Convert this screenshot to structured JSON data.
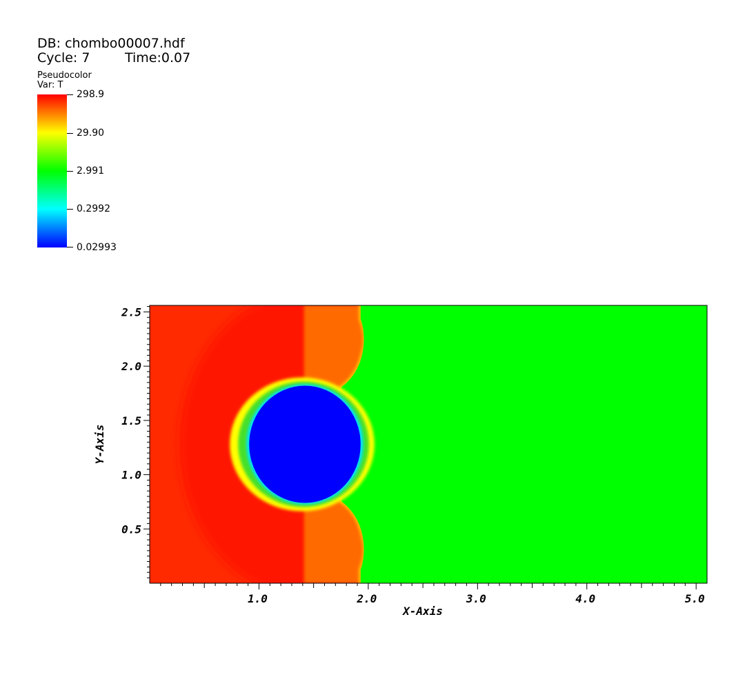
{
  "header": {
    "db": "DB: chombo00007.hdf",
    "cycle": "Cycle: 7",
    "time": "Time:0.07"
  },
  "legend": {
    "plot_type": "Pseudocolor",
    "variable": "Var: T",
    "labels": [
      "298.9",
      "29.90",
      "2.991",
      "0.2992",
      "0.02993"
    ],
    "colors": [
      "#ff0000",
      "#ffff00",
      "#00ff00",
      "#00ffff",
      "#0000ff"
    ]
  },
  "chart_data": {
    "type": "heatmap",
    "variable": "T",
    "xlabel": "X-Axis",
    "ylabel": "Y-Axis",
    "xlim": [
      0.0,
      5.1
    ],
    "ylim": [
      0.0,
      2.56
    ],
    "xticks": [
      1.0,
      2.0,
      3.0,
      4.0,
      5.0
    ],
    "xtick_labels": [
      "1.0",
      "2.0",
      "3.0",
      "4.0",
      "5.0"
    ],
    "yticks": [
      0.5,
      1.0,
      1.5,
      2.0,
      2.5
    ],
    "ytick_labels": [
      "0.5",
      "1.0",
      "1.5",
      "2.0",
      "2.5"
    ],
    "color_range": [
      0.02993,
      298.9
    ],
    "color_scale": "log",
    "regions": {
      "upstream_fill": "#ff2a00",
      "outer_shell": "#ff1500",
      "shocked_layer": "#ff6a00",
      "downstream_fill": "#00ff00",
      "bubble_core": "#0000ff",
      "bubble_rim": "#ffff00",
      "shock_front": "#ffcc00",
      "bubble_center": [
        1.42,
        1.28
      ],
      "bubble_radius": [
        0.51,
        0.54
      ],
      "shock_x": 1.93
    }
  }
}
